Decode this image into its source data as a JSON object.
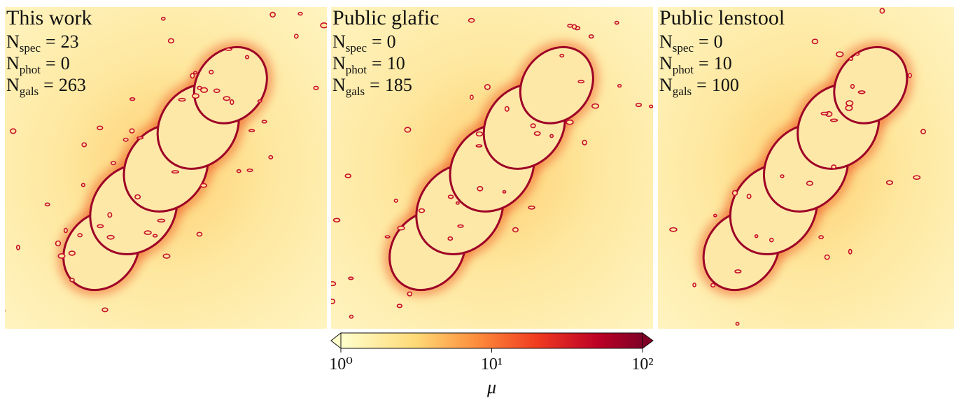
{
  "panels": [
    {
      "title": "This work",
      "counts": [
        {
          "symbol": "N",
          "subscript": "spec",
          "relation": "=",
          "value": 23
        },
        {
          "symbol": "N",
          "subscript": "phot",
          "relation": "=",
          "value": 0
        },
        {
          "symbol": "N",
          "subscript": "gals",
          "relation": "=",
          "value": 263
        }
      ]
    },
    {
      "title": "Public glafic",
      "counts": [
        {
          "symbol": "N",
          "subscript": "spec",
          "relation": "=",
          "value": 0
        },
        {
          "symbol": "N",
          "subscript": "phot",
          "relation": "=",
          "value": 10
        },
        {
          "symbol": "N",
          "subscript": "gals",
          "relation": "=",
          "value": 185
        }
      ]
    },
    {
      "title": "Public lenstool",
      "counts": [
        {
          "symbol": "N",
          "subscript": "spec",
          "relation": "=",
          "value": 0
        },
        {
          "symbol": "N",
          "subscript": "phot",
          "relation": "=",
          "value": 10
        },
        {
          "symbol": "N",
          "subscript": "gals",
          "relation": "=",
          "value": 100
        }
      ]
    }
  ],
  "colorbar": {
    "label": "μ",
    "scale": "log",
    "lim": [
      1,
      100
    ],
    "ticks": [
      {
        "value": 1,
        "label": "10⁰"
      },
      {
        "value": 10,
        "label": "10¹"
      },
      {
        "value": 100,
        "label": "10²"
      }
    ]
  }
}
